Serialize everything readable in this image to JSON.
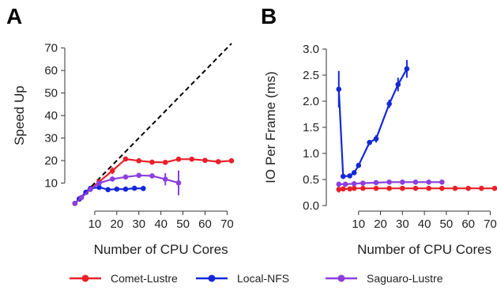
{
  "chart_data": [
    {
      "panel": "A",
      "type": "line",
      "title": "",
      "xlabel": "Number of CPU Cores",
      "ylabel": "Speed Up",
      "xlim": [
        0,
        72
      ],
      "ylim": [
        0,
        72
      ],
      "xticks": [
        10,
        20,
        30,
        40,
        50,
        60,
        70
      ],
      "yticks": [
        10,
        20,
        30,
        40,
        50,
        60,
        70
      ],
      "grid": false,
      "ideal_line": {
        "x": [
          1,
          72
        ],
        "y": [
          1,
          72
        ],
        "style": "dashed",
        "color": "#000000"
      },
      "series": [
        {
          "name": "Comet-Lustre",
          "color": "#e8202a",
          "x": [
            1,
            3,
            6,
            12,
            18,
            24,
            30,
            36,
            42,
            48,
            54,
            60,
            66,
            72
          ],
          "y": [
            1,
            2.9,
            5.9,
            10.6,
            15.5,
            20.7,
            19.9,
            19.3,
            19.2,
            20.6,
            20.6,
            20.1,
            19.5,
            19.9
          ],
          "err": [
            0,
            0,
            0,
            0.3,
            1.5,
            0.5,
            0.4,
            0.3,
            0.4,
            0.5,
            0.4,
            0.3,
            0.3,
            0.4
          ]
        },
        {
          "name": "Local-NFS",
          "color": "#1428d8",
          "x": [
            1,
            3,
            6,
            8,
            12,
            16,
            20,
            24,
            28,
            32
          ],
          "y": [
            1,
            3,
            5.9,
            7.6,
            8.1,
            7.1,
            7.3,
            7.3,
            7.7,
            7.6
          ],
          "err": [
            0,
            0,
            0,
            0,
            0,
            0,
            0,
            0,
            0,
            0
          ]
        },
        {
          "name": "Saguaro-Lustre",
          "color": "#8c3fdc",
          "x": [
            1,
            4,
            8,
            12,
            18,
            24,
            30,
            36,
            42,
            48
          ],
          "y": [
            1,
            3.6,
            7.2,
            10,
            11.8,
            12.7,
            13.4,
            13.2,
            11.7,
            10.1
          ],
          "err": [
            0,
            0,
            0,
            0.6,
            0.4,
            0.3,
            0.3,
            0.4,
            2.7,
            5.5
          ]
        }
      ]
    },
    {
      "panel": "B",
      "type": "line",
      "title": "",
      "xlabel": "Number of CPU Cores",
      "ylabel": "IO Per Frame (ms)",
      "xlim": [
        0,
        72
      ],
      "ylim": [
        0,
        3.0
      ],
      "xticks": [
        10,
        20,
        30,
        40,
        50,
        60,
        70
      ],
      "yticks": [
        "0.0",
        "0.5",
        "1.0",
        "1.5",
        "2.0",
        "2.5",
        "3.0"
      ],
      "grid": false,
      "series": [
        {
          "name": "Comet-Lustre",
          "color": "#e8202a",
          "x": [
            1,
            3,
            6,
            8,
            12,
            18,
            24,
            30,
            36,
            42,
            48,
            54,
            60,
            66,
            72
          ],
          "y": [
            0.31,
            0.32,
            0.32,
            0.33,
            0.33,
            0.33,
            0.33,
            0.33,
            0.33,
            0.33,
            0.33,
            0.33,
            0.33,
            0.33,
            0.33
          ],
          "err": [
            0.06,
            0.03,
            0.03,
            0.02,
            0.02,
            0.02,
            0.02,
            0.02,
            0.02,
            0.02,
            0.02,
            0.02,
            0.02,
            0.02,
            0.02
          ]
        },
        {
          "name": "Local-NFS",
          "color": "#1428d8",
          "x": [
            1,
            3,
            6,
            8,
            10,
            15,
            18,
            24,
            28,
            32
          ],
          "y": [
            2.23,
            0.56,
            0.57,
            0.63,
            0.77,
            1.21,
            1.28,
            1.95,
            2.32,
            2.62
          ],
          "err": [
            0.35,
            0.03,
            0.03,
            0.03,
            0.03,
            0.03,
            0.07,
            0.08,
            0.13,
            0.17
          ]
        },
        {
          "name": "Saguaro-Lustre",
          "color": "#8c3fdc",
          "x": [
            1,
            4,
            8,
            12,
            18,
            24,
            30,
            36,
            42,
            48
          ],
          "y": [
            0.41,
            0.41,
            0.42,
            0.43,
            0.44,
            0.45,
            0.45,
            0.45,
            0.45,
            0.45
          ],
          "err": [
            0.05,
            0.03,
            0.03,
            0.02,
            0.02,
            0.02,
            0.02,
            0.02,
            0.02,
            0.02
          ]
        }
      ]
    }
  ],
  "legend": {
    "placement": "bottom",
    "entries": [
      "Comet-Lustre",
      "Local-NFS",
      "Saguaro-Lustre"
    ]
  }
}
